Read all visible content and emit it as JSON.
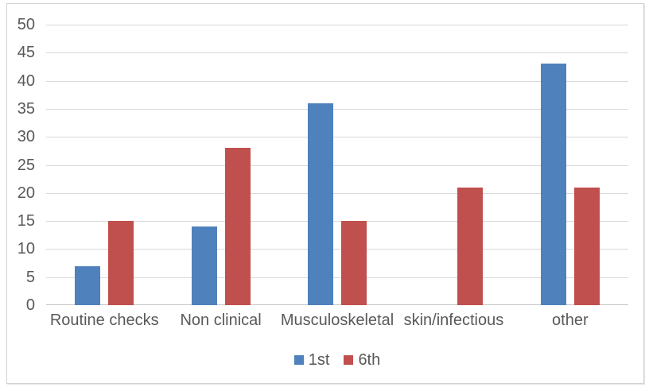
{
  "chart_data": {
    "type": "bar",
    "title": "",
    "xlabel": "",
    "ylabel": "",
    "categories": [
      "Routine checks",
      "Non clinical",
      "Musculoskeletal",
      "skin/infectious",
      "other"
    ],
    "series": [
      {
        "name": "1st",
        "color": "#4F81BD",
        "values": [
          7,
          14,
          36,
          0,
          43
        ]
      },
      {
        "name": "6th",
        "color": "#C0504D",
        "values": [
          15,
          28,
          15,
          21,
          21
        ]
      }
    ],
    "ylim": [
      0,
      50
    ],
    "ytick_step": 5,
    "ytick_labels": [
      "0",
      "5",
      "10",
      "15",
      "20",
      "25",
      "30",
      "35",
      "40",
      "45",
      "50"
    ],
    "grid": true,
    "legend_position": "bottom-center",
    "colors": {
      "gridline": "#D9D9D9",
      "baseline": "#C3C3C3",
      "axis_text": "#595959",
      "frame_border": "#D3D3D3",
      "background": "#FFFFFF"
    }
  }
}
